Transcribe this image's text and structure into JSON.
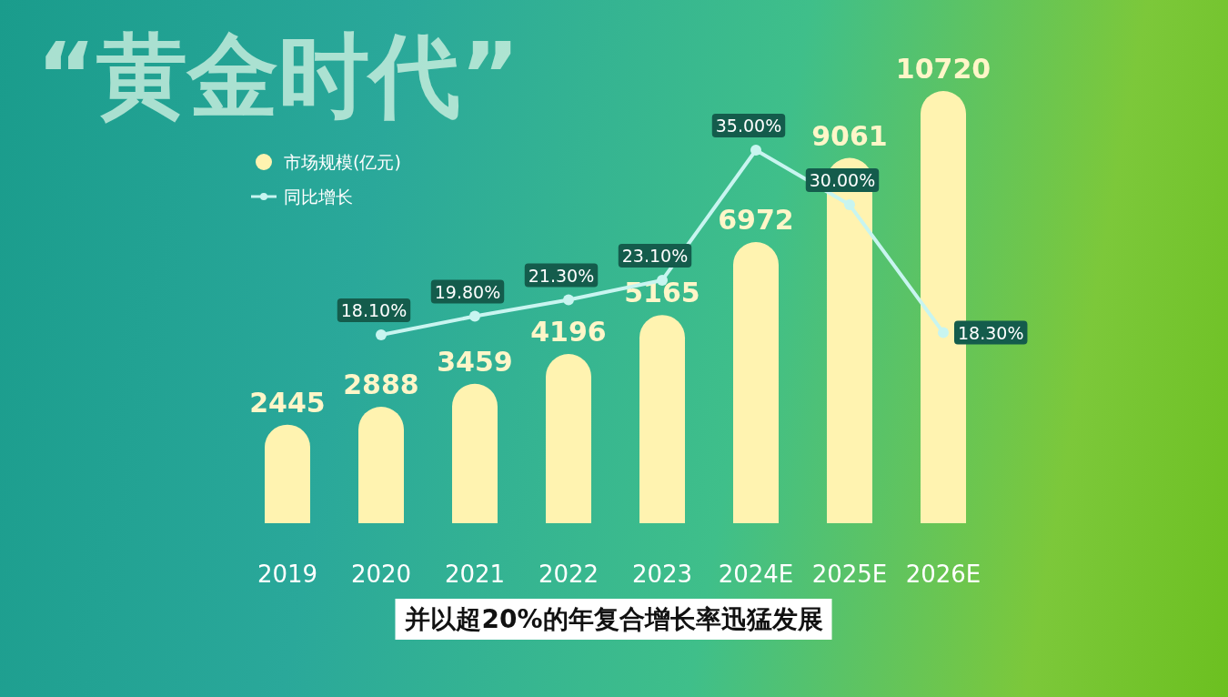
{
  "chart_data": {
    "type": "bar",
    "title": "“黄金时代”",
    "categories": [
      "2019",
      "2020",
      "2021",
      "2022",
      "2023",
      "2024E",
      "2025E",
      "2026E"
    ],
    "series": [
      {
        "name": "市场规模(亿元)",
        "color": "#fff3b0",
        "values": [
          2445,
          2888,
          3459,
          4196,
          5165,
          6972,
          9061,
          10720
        ]
      },
      {
        "name": "同比增长",
        "type": "line",
        "axis": "y2",
        "color": "#c8f5f0",
        "values": [
          null,
          18.1,
          19.8,
          21.3,
          23.1,
          35.0,
          30.0,
          18.3
        ],
        "value_labels": [
          null,
          "18.10%",
          "19.80%",
          "21.30%",
          "23.10%",
          "35.00%",
          "30.00%",
          "18.30%"
        ]
      }
    ],
    "data_labels": true,
    "legend": "top left",
    "marker": "circle",
    "annotations": [
      "并以超20%的年复合增长率迅猛发展"
    ]
  }
}
